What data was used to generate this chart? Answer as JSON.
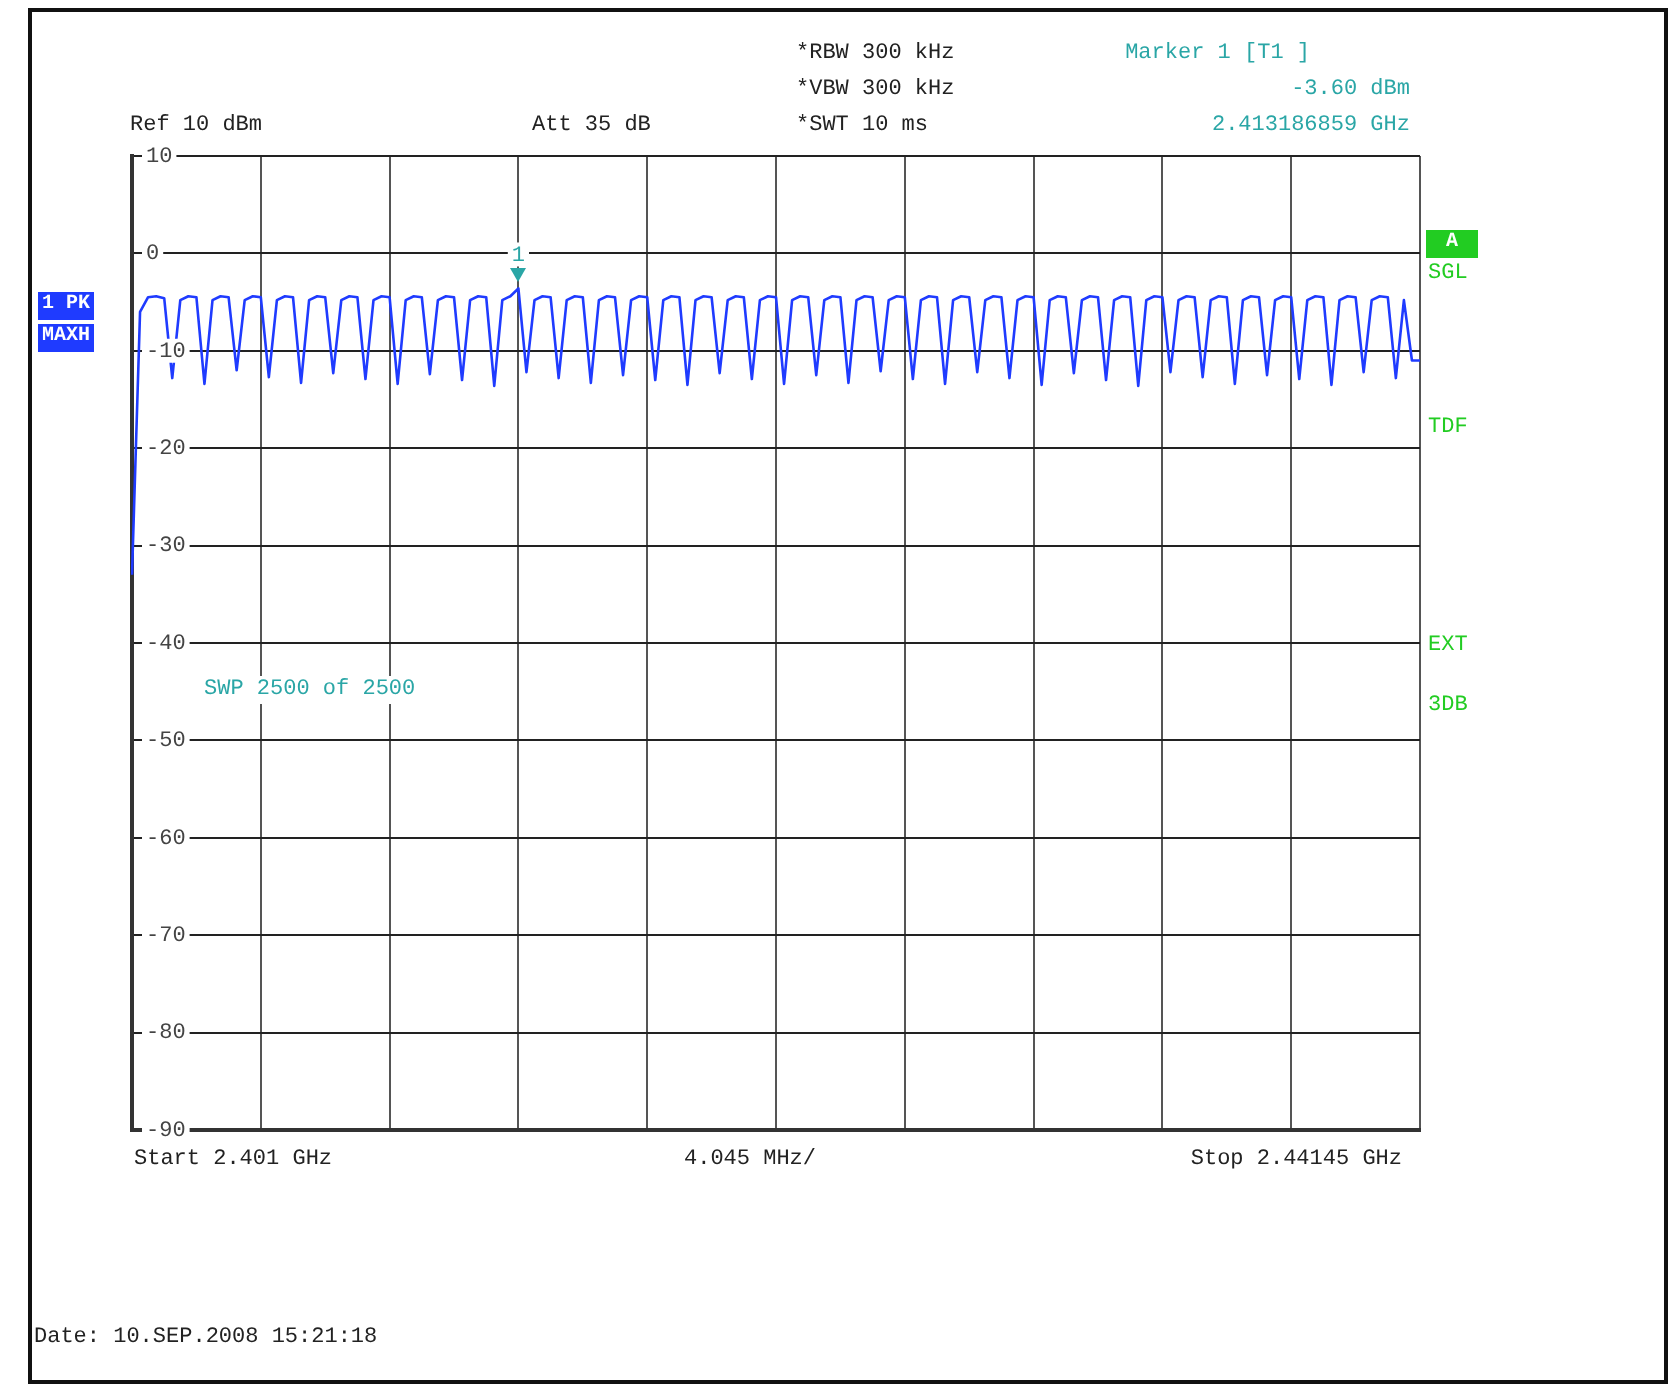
{
  "chart_data": {
    "type": "line",
    "ylim": [
      -90,
      10
    ],
    "categories": [
      null,
      null,
      null,
      null,
      null,
      null,
      null,
      null,
      null,
      null,
      null,
      null,
      null,
      null,
      null,
      null,
      null,
      null,
      null,
      null,
      null,
      null,
      null,
      null,
      null,
      null,
      null,
      null,
      null,
      null,
      null,
      null,
      null,
      null,
      null,
      null,
      null,
      null,
      null,
      null,
      null,
      null,
      null,
      null,
      null,
      null,
      null,
      null,
      null,
      null,
      null,
      null,
      null,
      null,
      null,
      null,
      null,
      null,
      null,
      null,
      null,
      null,
      null,
      null,
      null,
      null,
      null,
      null,
      null,
      null,
      null,
      null,
      null,
      null,
      null,
      null,
      null,
      null,
      null,
      null,
      null,
      null,
      null,
      null,
      null,
      null,
      null,
      null,
      null,
      null,
      null,
      null,
      null,
      null,
      null,
      null,
      null,
      null,
      null,
      null,
      null,
      null,
      null,
      null,
      null,
      null,
      null,
      null,
      null,
      null,
      null,
      null,
      null,
      null,
      null,
      null,
      null,
      null,
      null,
      null,
      null,
      null,
      null,
      null,
      null,
      null,
      null,
      null,
      null,
      null,
      null,
      null,
      null,
      null,
      null,
      null,
      null,
      null,
      null,
      null,
      null,
      null,
      null,
      null,
      null,
      null,
      null,
      null,
      null,
      null,
      null,
      null,
      null,
      null,
      null,
      null,
      null,
      null,
      null,
      null,
      null
    ],
    "yticks": [
      10,
      0,
      -10,
      -20,
      -30,
      -40,
      -50,
      -60,
      -70,
      -80,
      -90
    ],
    "tick_labels": "y",
    "grid": true,
    "legend": false,
    "marker": "none",
    "line_style": "solid",
    "series": [
      {
        "color": "#1f3bff",
        "values": [
          -33,
          -6,
          -4.5,
          -4.4,
          -4.6,
          -12.8,
          -4.8,
          -4.4,
          -4.5,
          -13.4,
          -4.8,
          -4.4,
          -4.5,
          -12,
          -4.8,
          -4.4,
          -4.5,
          -12.7,
          -4.8,
          -4.4,
          -4.5,
          -13.3,
          -4.8,
          -4.4,
          -4.5,
          -12.3,
          -4.8,
          -4.4,
          -4.5,
          -12.9,
          -4.8,
          -4.4,
          -4.5,
          -13.4,
          -4.8,
          -4.4,
          -4.5,
          -12.4,
          -4.8,
          -4.4,
          -4.5,
          -13,
          -4.8,
          -4.4,
          -4.5,
          -13.6,
          -4.8,
          -4.4,
          -3.6,
          -12.2,
          -4.8,
          -4.4,
          -4.5,
          -12.8,
          -4.8,
          -4.4,
          -4.5,
          -13.3,
          -4.8,
          -4.4,
          -4.5,
          -12.5,
          -4.8,
          -4.4,
          -4.5,
          -13,
          -4.8,
          -4.4,
          -4.5,
          -13.5,
          -4.8,
          -4.4,
          -4.5,
          -12.3,
          -4.8,
          -4.4,
          -4.5,
          -12.9,
          -4.8,
          -4.4,
          -4.5,
          -13.4,
          -4.8,
          -4.4,
          -4.5,
          -12.5,
          -4.8,
          -4.4,
          -4.5,
          -13.3,
          -4.8,
          -4.4,
          -4.5,
          -12.1,
          -4.8,
          -4.4,
          -4.5,
          -12.9,
          -4.8,
          -4.4,
          -4.5,
          -13.4,
          -4.8,
          -4.4,
          -4.5,
          -12.2,
          -4.8,
          -4.4,
          -4.5,
          -12.8,
          -4.8,
          -4.4,
          -4.5,
          -13.5,
          -4.8,
          -4.4,
          -4.5,
          -12.3,
          -4.8,
          -4.4,
          -4.5,
          -13,
          -4.8,
          -4.4,
          -4.5,
          -13.6,
          -4.8,
          -4.4,
          -4.5,
          -12.2,
          -4.8,
          -4.4,
          -4.5,
          -12.7,
          -4.8,
          -4.4,
          -4.5,
          -13.4,
          -4.8,
          -4.4,
          -4.5,
          -12.5,
          -4.8,
          -4.4,
          -4.5,
          -12.9,
          -4.8,
          -4.4,
          -4.5,
          -13.5,
          -4.8,
          -4.4,
          -4.5,
          -12.2,
          -4.8,
          -4.4,
          -4.5,
          -12.8,
          -4.8,
          -11,
          -11
        ]
      }
    ],
    "annotations": [
      "*RBW 300 kHz",
      "*VBW 300 kHz",
      "*SWT 10 ms",
      "Marker 1 [T1 ]",
      "-3.60 dBm",
      "2.413186859 GHz",
      "Ref 10 dBm",
      "Att 35 dB",
      "1 PK",
      "MAXH",
      "A",
      "SGL",
      "TDF",
      "EXT",
      "3DB",
      "SWP 2500 of 2500",
      "Start 2.401 GHz",
      "4.045 MHz/",
      "Stop 2.44145 GHz",
      "Date: 10.SEP.2008 15:21:18",
      {
        "text": "1",
        "y": -3.6
      }
    ]
  }
}
